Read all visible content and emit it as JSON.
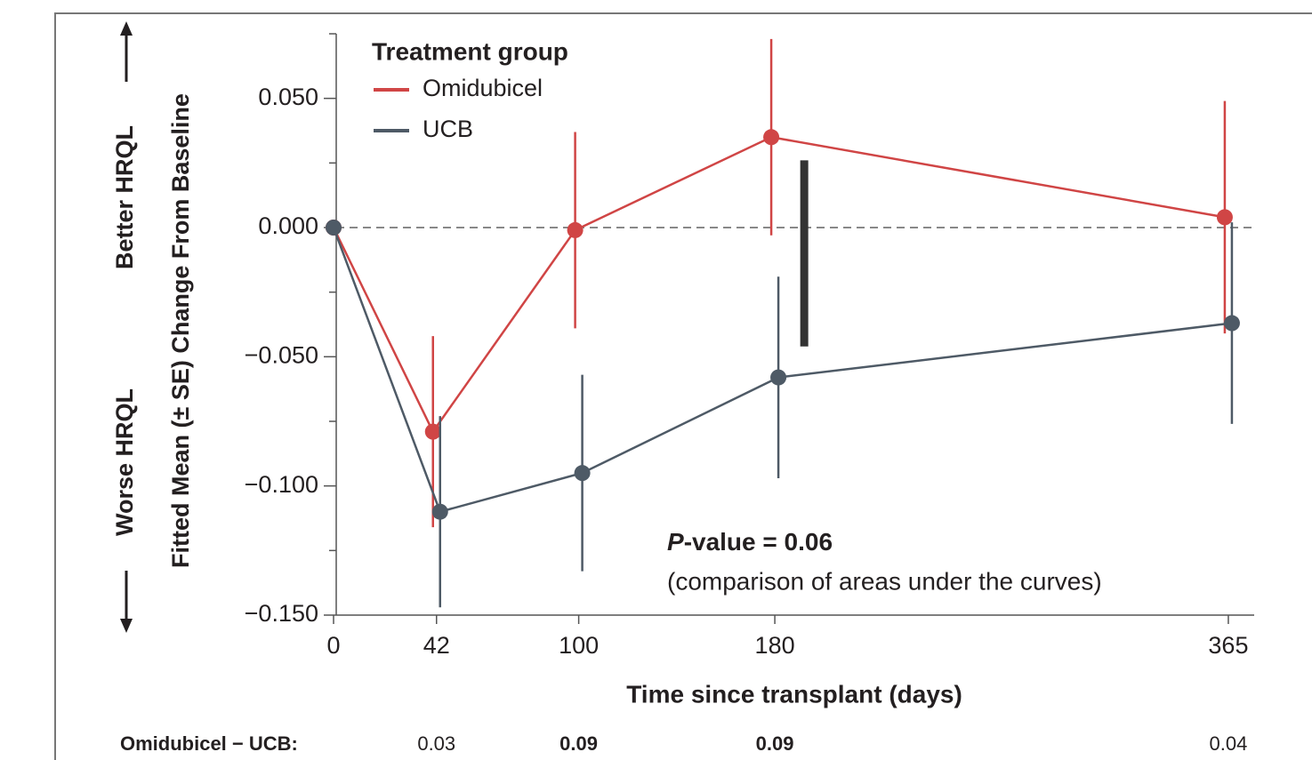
{
  "chart_data": {
    "type": "line",
    "y_label": "Fitted Mean (± SE) Change From Baseline",
    "y_label_top": "Better HRQL",
    "y_label_bottom": "Worse HRQL",
    "x_label": "Time since transplant (days)",
    "legend_title": "Treatment group",
    "legend": "upper left",
    "x": [
      0,
      42,
      100,
      180,
      365
    ],
    "series": [
      {
        "name": "Omidubicel",
        "color": "#d04545",
        "values": [
          0,
          -0.079,
          -0.001,
          0.035,
          0.004
        ],
        "errors": [
          null,
          0.037,
          0.038,
          0.038,
          0.045
        ]
      },
      {
        "name": "UCB",
        "color": "#4e5a66",
        "values": [
          0,
          -0.11,
          -0.095,
          -0.058,
          -0.037
        ],
        "errors": [
          null,
          0.037,
          0.038,
          0.039,
          0.039
        ]
      }
    ],
    "xlim": [
      0,
      375
    ],
    "xticks": [
      0,
      42,
      100,
      180,
      365
    ],
    "ylim": [
      -0.15,
      0.075
    ],
    "yticks": [
      {
        "value": 0.05,
        "label": "0.050"
      },
      {
        "value": 0,
        "label": "0.000"
      },
      {
        "value": -0.05,
        "label": "−0.050"
      },
      {
        "value": -0.1,
        "label": "−0.100"
      },
      {
        "value": -0.15,
        "label": "−0.150"
      }
    ],
    "yminorticks": [
      0.075,
      0.025,
      -0.025,
      -0.075,
      -0.125
    ],
    "reference_line": 0,
    "difference_bar": {
      "x": 192,
      "low": -0.046,
      "high": 0.026
    },
    "annotation": "P-value = 0.06",
    "annotation_note": "(comparison of areas under the curves)",
    "differences": {
      "label": "Omidubicel − UCB:",
      "x": [
        42,
        100,
        180,
        365
      ],
      "values": [
        0.03,
        0.09,
        0.09,
        0.04
      ],
      "bold": [
        false,
        true,
        true,
        false
      ]
    }
  }
}
